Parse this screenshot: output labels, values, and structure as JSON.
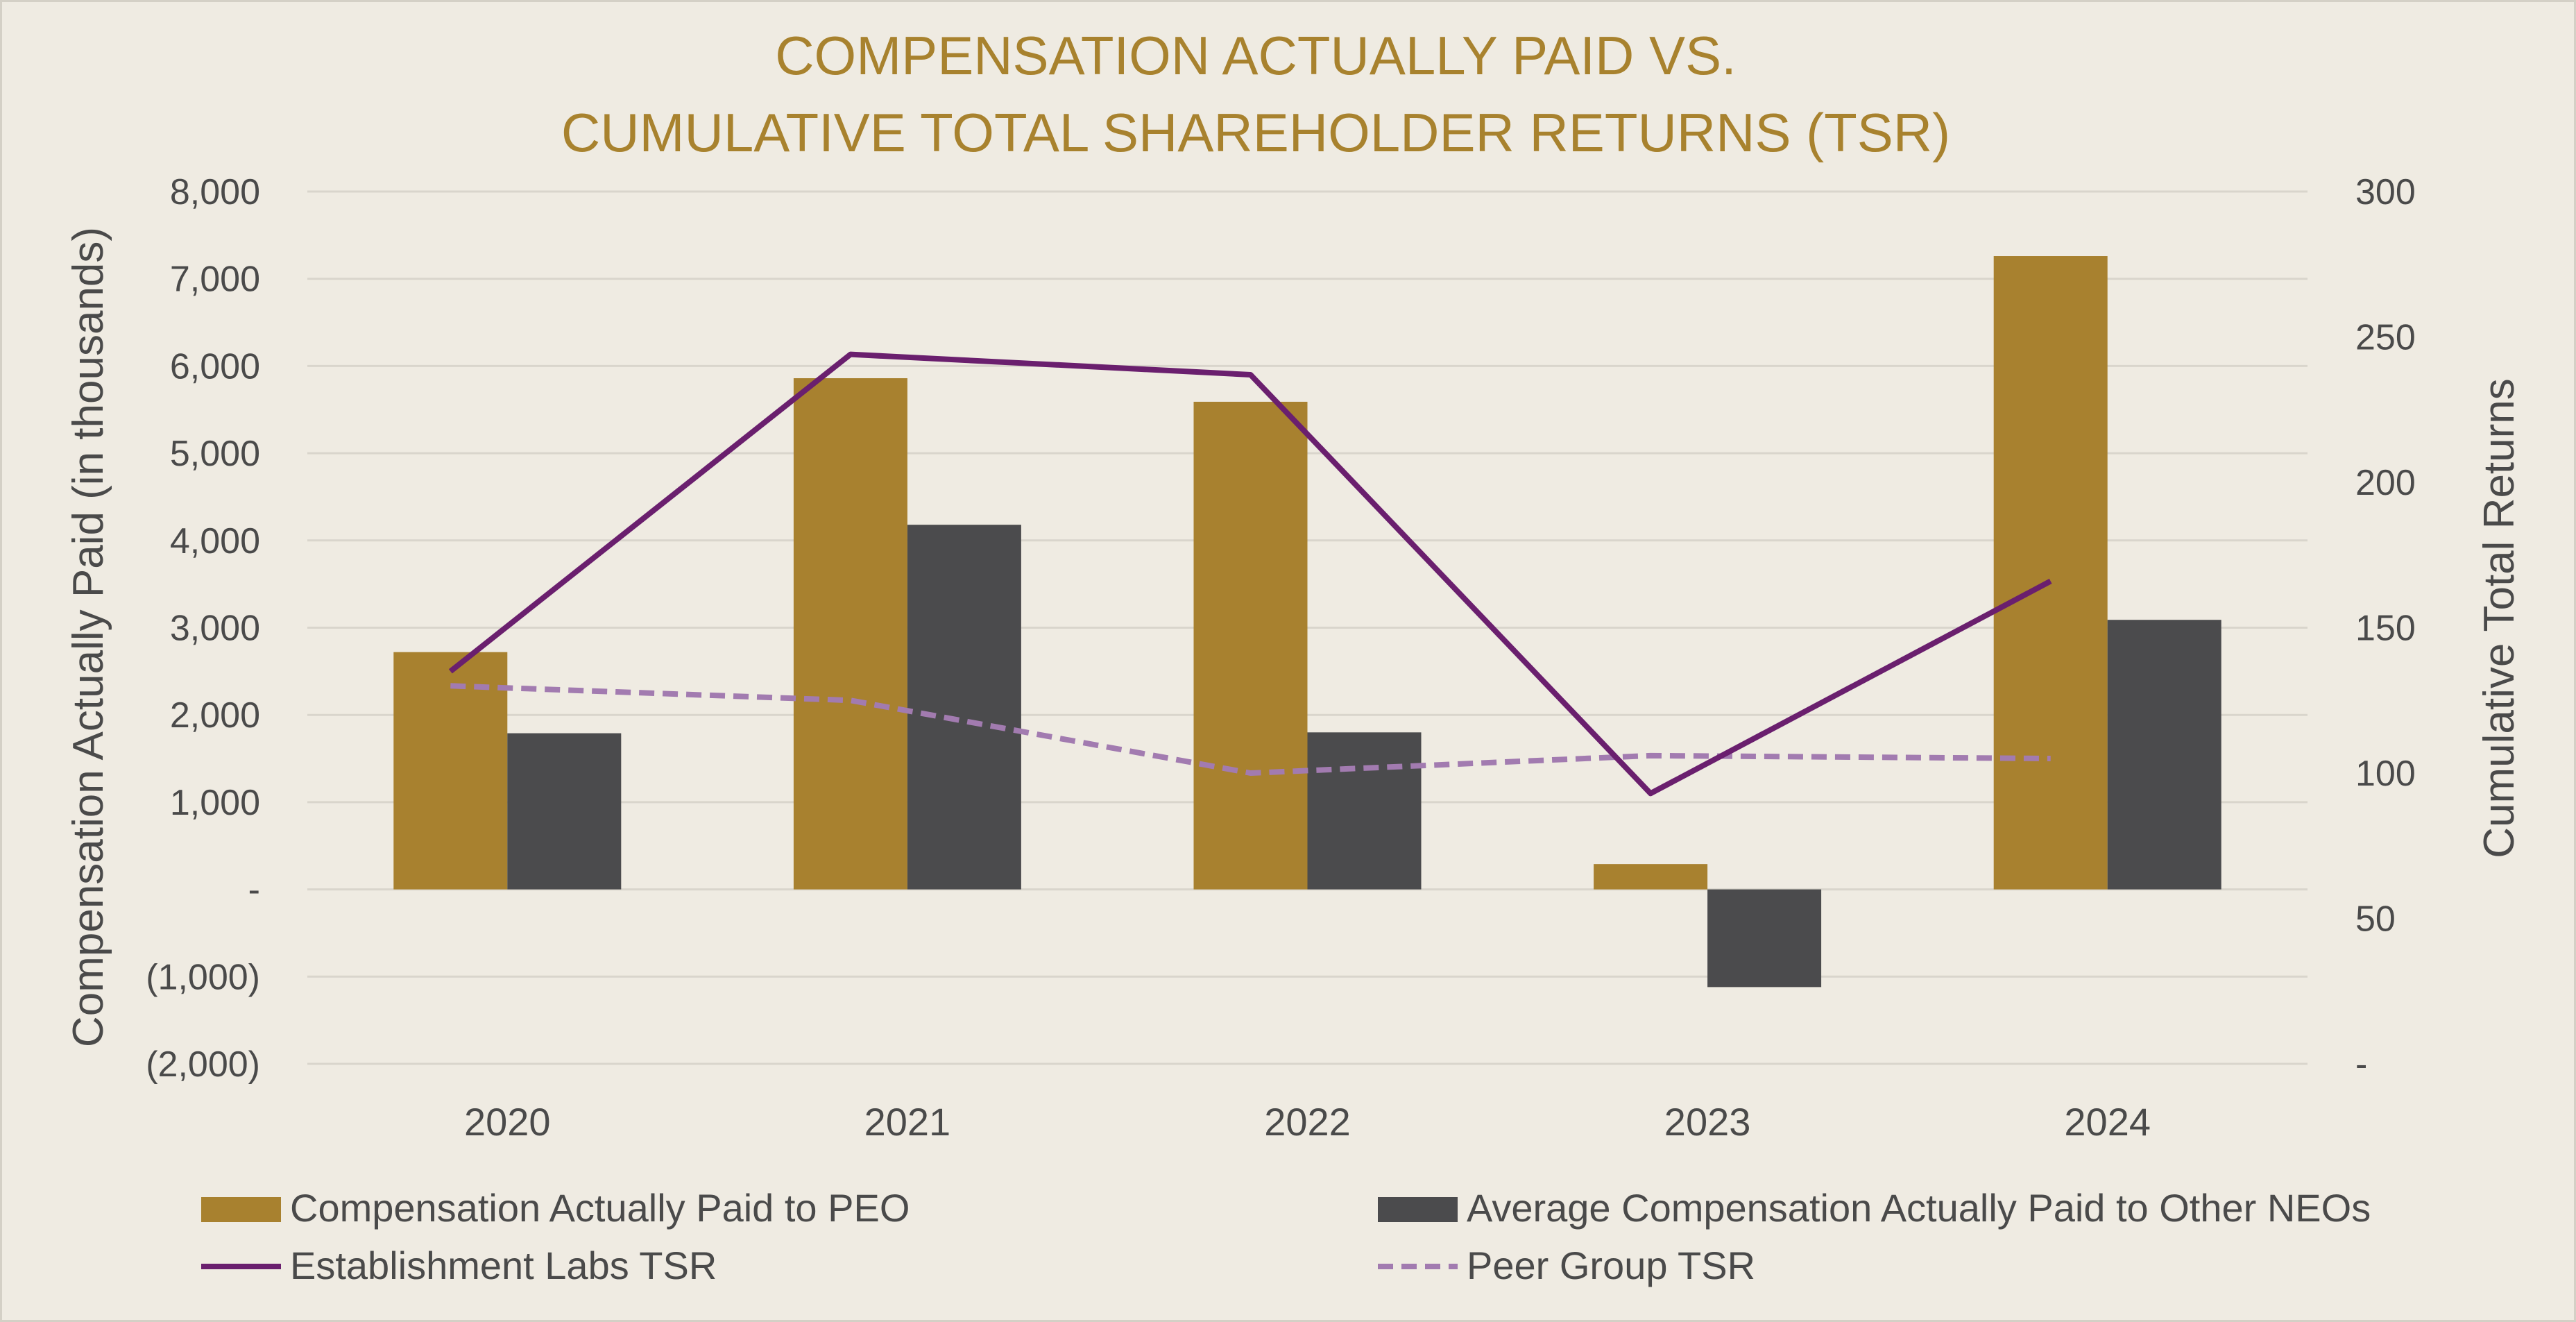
{
  "chart_data": {
    "type": "bar",
    "title_lines": [
      "COMPENSATION ACTUALLY PAID VS.",
      "CUMULATIVE TOTAL SHAREHOLDER RETURNS (TSR)"
    ],
    "ylabel": "Compensation Actually Paid (in thousands)",
    "y2label": "Cumulative Total Returns",
    "categories": [
      "2020",
      "2021",
      "2022",
      "2023",
      "2024"
    ],
    "ylim": [
      -2000,
      8000
    ],
    "y2lim": [
      0,
      300
    ],
    "y_ticks": [
      8000,
      7000,
      6000,
      5000,
      4000,
      3000,
      2000,
      1000,
      0,
      -1000,
      -2000
    ],
    "y_tick_labels": [
      "8,000",
      "7,000",
      "6,000",
      "5,000",
      "4,000",
      "3,000",
      "2,000",
      "1,000",
      "-",
      "(1,000)",
      "(2,000)"
    ],
    "y2_ticks": [
      300,
      250,
      200,
      150,
      100,
      50,
      0
    ],
    "y2_tick_labels": [
      "300",
      "250",
      "200",
      "150",
      "100",
      "50",
      "-"
    ],
    "colors": {
      "peo": "#a8812f",
      "neo": "#4b4b4d",
      "labs_tsr": "#6a1f6e",
      "peer_tsr": "#a27bb0",
      "title": "#a8822e"
    },
    "series": [
      {
        "name": "Compensation Actually Paid to PEO",
        "kind": "bar",
        "axis": "left",
        "values": [
          2720,
          5860,
          5590,
          290,
          7260
        ]
      },
      {
        "name": "Average Compensation Actually Paid to Other NEOs",
        "kind": "bar",
        "axis": "left",
        "values": [
          1790,
          4180,
          1800,
          -1120,
          3090
        ]
      },
      {
        "name": "Establishment Labs TSR",
        "kind": "line",
        "axis": "right",
        "style": "solid",
        "values": [
          135,
          244,
          237,
          93,
          166
        ]
      },
      {
        "name": "Peer Group TSR",
        "kind": "line",
        "axis": "right",
        "style": "dashed",
        "values": [
          130,
          125,
          100,
          106,
          105
        ]
      }
    ]
  }
}
